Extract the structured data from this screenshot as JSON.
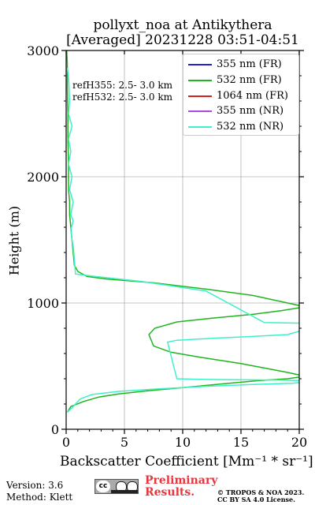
{
  "title": {
    "line1": "pollyxt_noa at Antikythera",
    "line2": "[Averaged] 20231228 03:51-04:51"
  },
  "annotations": [
    "refH355:  2.5- 3.0 km",
    "refH532:  2.5- 3.0 km"
  ],
  "footer": {
    "version": "Version: 3.6",
    "method": "Method: Klett",
    "prelim_line1": "Preliminary",
    "prelim_line2": "Results.",
    "copyright_line1": "© TROPOS & NOA 2023.",
    "copyright_line2": "CC BY SA 4.0 License."
  },
  "logo": {
    "icon": "cc-by-sa-icon",
    "text": "cc"
  },
  "chart_data": {
    "type": "line",
    "title": "pollyxt_noa at Antikythera [Averaged] 20231228 03:51-04:51",
    "xlabel": "Backscatter Coefficient [Mm⁻¹ * sr⁻¹]",
    "ylabel": "Height (m)",
    "xlim": [
      0,
      20
    ],
    "ylim": [
      0,
      3000
    ],
    "xticks": [
      "0",
      "5",
      "10",
      "15",
      "20"
    ],
    "yticks": [
      "0",
      "1000",
      "2000",
      "3000"
    ],
    "grid": true,
    "legend_position": "top-right",
    "series": [
      {
        "name": "355 nm (FR)",
        "color": "#1f1fd6",
        "x": [],
        "y": []
      },
      {
        "name": "532 nm (FR)",
        "color": "#1fb51f",
        "x": [
          0.1,
          0.4,
          1.5,
          2.8,
          4.5,
          7.0,
          10.0,
          13.5,
          16.5,
          19.0,
          20.5,
          19.0,
          15.0,
          11.5,
          9.0,
          7.5,
          7.1,
          7.6,
          9.5,
          12.5,
          16.0,
          18.5,
          20.5,
          18.5,
          16.0,
          12.0,
          7.5,
          3.5,
          1.8,
          1.0,
          0.7,
          0.6,
          0.5,
          0.4,
          0.3,
          0.3,
          0.2,
          0.2,
          0.2,
          0.15,
          0.15,
          0.1,
          0.1,
          0.05
        ],
        "y": [
          135,
          180,
          220,
          255,
          280,
          305,
          330,
          360,
          385,
          400,
          420,
          450,
          520,
          570,
          610,
          660,
          750,
          800,
          850,
          880,
          910,
          940,
          970,
          1010,
          1060,
          1110,
          1160,
          1190,
          1210,
          1250,
          1300,
          1400,
          1500,
          1600,
          1700,
          1800,
          1900,
          2000,
          2100,
          2300,
          2500,
          2700,
          2900,
          3000
        ]
      },
      {
        "name": "1064 nm (FR)",
        "color": "#d62020",
        "x": [],
        "y": []
      },
      {
        "name": "355 nm (NR)",
        "color": "#a44ce0",
        "x": [],
        "y": []
      },
      {
        "name": "532 nm (NR)",
        "color": "#3ff0c8",
        "x": [
          0.1,
          0.6,
          1.2,
          2.2,
          4.5,
          8.0,
          12.0,
          16.0,
          19.5,
          20.5,
          20.5,
          18.0,
          14.5,
          11.5,
          9.5,
          8.7,
          9.5,
          12.5,
          16.0,
          19.0,
          20.5,
          20.5,
          17.0,
          12.0,
          6.5,
          2.5,
          1.2,
          0.8,
          0.7,
          0.6,
          0.5,
          0.4,
          0.6,
          0.4,
          0.6,
          0.3,
          0.5,
          0.2,
          0.4,
          0.2,
          0.5,
          0.2,
          0.3,
          0.2,
          0.1
        ],
        "y": [
          135,
          180,
          240,
          275,
          300,
          320,
          340,
          355,
          365,
          375,
          385,
          390,
          392,
          395,
          400,
          690,
          705,
          720,
          735,
          750,
          790,
          840,
          845,
          1095,
          1170,
          1210,
          1225,
          1230,
          1350,
          1450,
          1500,
          1580,
          1650,
          1700,
          1800,
          1900,
          2000,
          2100,
          2200,
          2300,
          2400,
          2500,
          2600,
          2800,
          2860
        ]
      }
    ]
  }
}
